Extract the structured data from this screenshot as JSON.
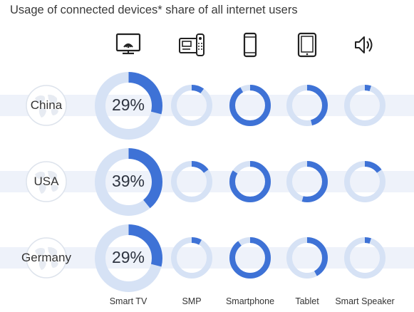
{
  "title": "Usage of connected devices* share of all internet users",
  "colors": {
    "accent": "#3e72d6",
    "track": "#d6e2f5",
    "band": "#eef2fa"
  },
  "icons": [
    "smart-tv-icon",
    "smp-icon",
    "smartphone-icon",
    "tablet-icon",
    "smart-speaker-icon",
    "globe-icon"
  ],
  "chart_data": {
    "type": "donut-grid",
    "title": "Usage of connected devices* share of all internet users",
    "categories": [
      "Smart TV",
      "SMP",
      "Smartphone",
      "Tablet",
      "Smart Speaker"
    ],
    "series": [
      {
        "name": "China",
        "values": [
          29,
          10,
          92,
          46,
          5
        ],
        "labels": [
          "29%",
          "",
          "",
          "",
          ""
        ]
      },
      {
        "name": "USA",
        "values": [
          39,
          15,
          84,
          54,
          15
        ],
        "labels": [
          "39%",
          "",
          "",
          "",
          ""
        ]
      },
      {
        "name": "Germany",
        "values": [
          29,
          8,
          90,
          42,
          5
        ],
        "labels": [
          "29%",
          "",
          "",
          "",
          ""
        ]
      }
    ],
    "unit": "%"
  }
}
